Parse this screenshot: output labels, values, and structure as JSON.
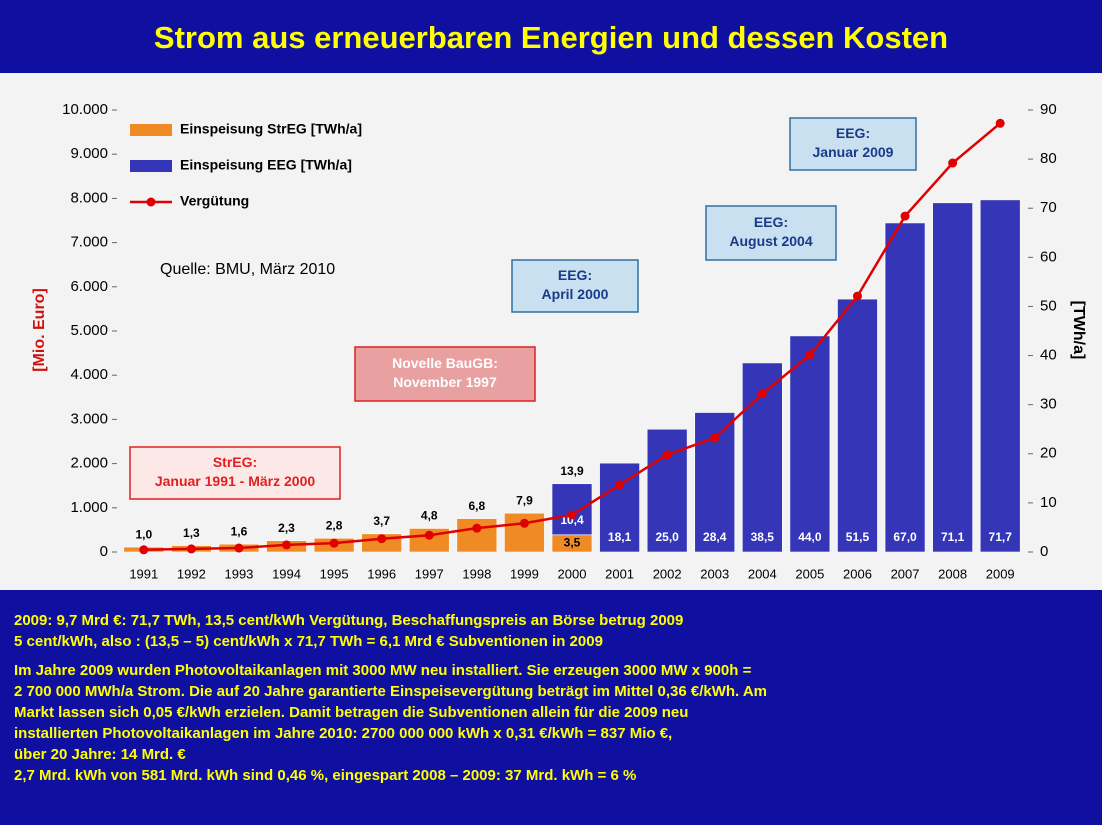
{
  "chart_data": {
    "type": "bar",
    "title": "Strom aus erneuerbaren Energien und dessen Kosten",
    "source": "Quelle: BMU, März 2010",
    "y_label": "[Mio. Euro]",
    "y2_label": "[TWh/a]",
    "categories": [
      "1991",
      "1992",
      "1993",
      "1994",
      "1995",
      "1996",
      "1997",
      "1998",
      "1999",
      "2000",
      "2001",
      "2002",
      "2003",
      "2004",
      "2005",
      "2006",
      "2007",
      "2008",
      "2009"
    ],
    "series": [
      {
        "name": "Einspeisung StrEG [TWh/a]",
        "color": "#f08a24",
        "axis": "y2",
        "values": [
          1.0,
          1.3,
          1.6,
          2.3,
          2.8,
          3.7,
          4.8,
          6.8,
          7.9,
          3.5,
          null,
          null,
          null,
          null,
          null,
          null,
          null,
          null,
          null
        ],
        "value_labels": [
          "1,0",
          "1,3",
          "1,6",
          "2,3",
          "2,8",
          "3,7",
          "4,8",
          "6,8",
          "7,9",
          "3,5",
          null,
          null,
          null,
          null,
          null,
          null,
          null,
          null,
          null
        ]
      },
      {
        "name": "Einspeisung EEG [TWh/a]",
        "color": "#3535b8",
        "axis": "y2",
        "values": [
          null,
          null,
          null,
          null,
          null,
          null,
          null,
          null,
          null,
          10.4,
          18.1,
          25.0,
          28.4,
          38.5,
          44.0,
          51.5,
          67.0,
          71.1,
          71.7
        ],
        "value_labels": [
          null,
          null,
          null,
          null,
          null,
          null,
          null,
          null,
          null,
          "10,4",
          "18,1",
          "25,0",
          "28,4",
          "38,5",
          "44,0",
          "51,5",
          "67,0",
          "71,1",
          "71,7"
        ]
      },
      {
        "name": "Vergütung",
        "type": "line",
        "color": "#e00000",
        "values": [
          50,
          70,
          90,
          160,
          200,
          300,
          380,
          540,
          650,
          840,
          1520,
          2200,
          2580,
          3580,
          4460,
          5790,
          7600,
          8800,
          9700
        ]
      }
    ],
    "stack_total": {
      "category": "2000",
      "value": 13.9,
      "label": "13,9"
    },
    "ylim": [
      0,
      10000
    ],
    "yticks": [
      0,
      {
        "value": 1000,
        "label": "1.000"
      },
      {
        "value": 2000,
        "label": "2.000"
      },
      {
        "value": 3000,
        "label": "3.000"
      },
      {
        "value": 4000,
        "label": "4.000"
      },
      {
        "value": 5000,
        "label": "5.000"
      },
      {
        "value": 6000,
        "label": "6.000"
      },
      {
        "value": 7000,
        "label": "7.000"
      },
      {
        "value": 8000,
        "label": "8.000"
      },
      {
        "value": 9000,
        "label": "9.000"
      },
      {
        "value": 10000,
        "label": "10.000"
      }
    ],
    "y2lim": [
      0,
      90
    ],
    "y2ticks": [
      0,
      10,
      20,
      30,
      40,
      50,
      60,
      70,
      80,
      90
    ],
    "legend": "upper left",
    "annotations": [
      {
        "lines": [
          "StrEG:",
          "Januar 1991 - März 2000"
        ],
        "color": "red"
      },
      {
        "lines": [
          "Novelle BauGB:",
          "November 1997"
        ],
        "color": "red-filled"
      },
      {
        "lines": [
          "EEG:",
          "April 2000"
        ],
        "color": "blue"
      },
      {
        "lines": [
          "EEG:",
          "August 2004"
        ],
        "color": "blue"
      },
      {
        "lines": [
          "EEG:",
          "Januar 2009"
        ],
        "color": "blue"
      }
    ]
  },
  "notes": [
    [
      "2009: 9,7 Mrd €: 71,7 TWh, 13,5 cent/kWh Vergütung, Beschaffungspreis an Börse betrug 2009",
      "5 cent/kWh, also : (13,5 – 5) cent/kWh x 71,7 TWh = 6,1 Mrd € Subventionen in 2009"
    ],
    [
      "Im Jahre 2009 wurden Photovoltaikanlagen mit 3000 MW neu installiert. Sie erzeugen 3000 MW x 900h =",
      "2 700 000 MWh/a Strom. Die auf 20 Jahre garantierte Einspeisevergütung beträgt im Mittel 0,36 €/kWh. Am",
      "Markt lassen sich 0,05 €/kWh erzielen. Damit betragen die Subventionen allein für die 2009 neu",
      "installierten Photovoltaikanlagen im Jahre 2010: 2700 000 000 kWh x 0,31 €/kWh = 837 Mio €,",
      "über 20 Jahre: 14 Mrd. €",
      "2,7 Mrd. kWh von 581 Mrd. kWh sind 0,46 %, eingespart 2008 – 2009:  37 Mrd. kWh = 6 %"
    ]
  ]
}
